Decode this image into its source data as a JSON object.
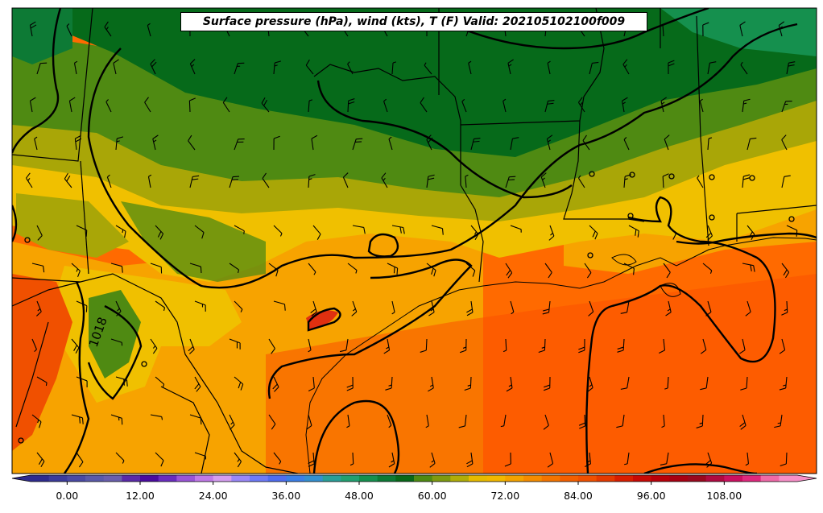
{
  "map": {
    "title": "Surface pressure (hPa), wind (kts), T (F) Valid: 202105102100f009",
    "isobar_label": "1018",
    "fields": [
      "temperature-fill",
      "isobars",
      "wind-barbs",
      "state-borders",
      "coastline"
    ]
  },
  "colorbar": {
    "tick_labels": [
      "0.00",
      "12.00",
      "24.00",
      "36.00",
      "48.00",
      "60.00",
      "72.00",
      "84.00",
      "96.00",
      "108.00"
    ],
    "tick_values": [
      0,
      12,
      24,
      36,
      48,
      60,
      72,
      84,
      96,
      108
    ],
    "range": [
      -6,
      120
    ],
    "colors": [
      "#2e2b8f",
      "#3b3b9b",
      "#4a4aa5",
      "#5a5aaa",
      "#6a5fad",
      "#5a2aa8",
      "#4a0ca0",
      "#6a2cc0",
      "#9a55d8",
      "#c07ae8",
      "#d59ef0",
      "#9a88f8",
      "#6e7bf8",
      "#4f6df0",
      "#3b7fe8",
      "#3490d0",
      "#2a9f98",
      "#22a070",
      "#15904e",
      "#0d7a35",
      "#086818",
      "#4f8a12",
      "#7e9a10",
      "#b0ad08",
      "#e6bb00",
      "#f2b800",
      "#f4a300",
      "#f58c00",
      "#f47400",
      "#f35f00",
      "#f05000",
      "#e43a00",
      "#d81e00",
      "#c80a05",
      "#b8000a",
      "#a80012",
      "#9a081e",
      "#b00a40",
      "#cc1060",
      "#e0287e",
      "#f06aa8",
      "#f790c8"
    ]
  },
  "legend_colors": {
    "cool_green": "#066a1a",
    "mid_green": "#4f8a12",
    "olive": "#a9a607",
    "yellow": "#f0c000",
    "orange_light": "#f7a300",
    "orange": "#ff6a00",
    "orange_dark": "#fb5000",
    "red_hot": "#e03010"
  }
}
